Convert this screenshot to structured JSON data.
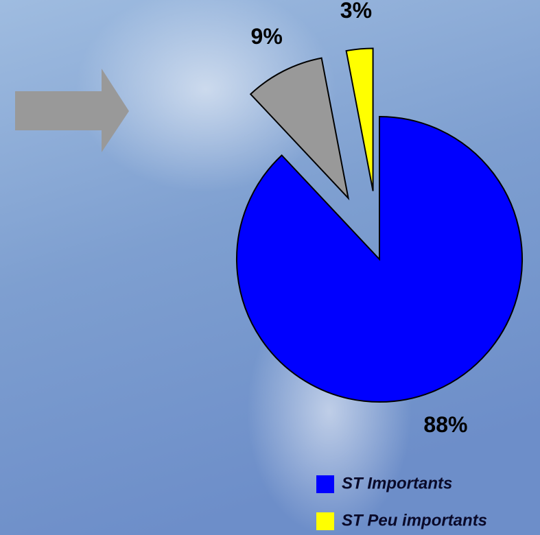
{
  "chart_data": {
    "type": "pie",
    "categories": [
      "ST Importants",
      null,
      "ST Peu importants"
    ],
    "values": [
      88,
      9,
      3
    ],
    "value_labels": [
      "88%",
      "9%",
      "3%"
    ],
    "colors": [
      "#0000ff",
      "#999999",
      "#ffff00"
    ],
    "exploded": [
      false,
      true,
      true
    ]
  }
}
